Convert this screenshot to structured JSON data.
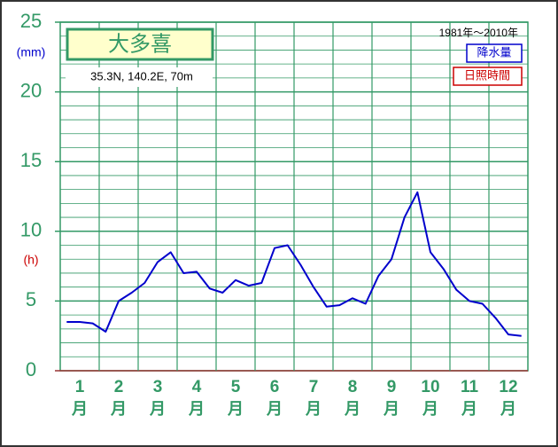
{
  "chart_data": {
    "type": "line",
    "title": "大多喜",
    "subtitle": "35.3N,  140.2E,  70m",
    "period": "1981年～2010年",
    "y_unit_left": "(mm)",
    "y_unit_right": "(h)",
    "x_unit": "月",
    "categories": [
      null,
      "1",
      null,
      null,
      "2",
      null,
      null,
      "3",
      null,
      null,
      "4",
      null,
      null,
      "5",
      null,
      null,
      "6",
      null,
      null,
      "7",
      null,
      null,
      "8",
      null,
      null,
      "9",
      null,
      null,
      "10",
      null,
      null,
      "11",
      null,
      null,
      "12",
      null
    ],
    "series": [
      {
        "name": "降水量",
        "color": "#0000cc",
        "values": [
          3.5,
          3.5,
          3.4,
          2.8,
          5.0,
          5.6,
          6.3,
          7.8,
          8.5,
          7.0,
          7.1,
          5.9,
          5.6,
          6.5,
          6.1,
          6.3,
          8.8,
          9.0,
          7.6,
          6.0,
          4.6,
          4.7,
          5.2,
          4.8,
          6.8,
          8.0,
          11.0,
          12.8,
          8.5,
          7.3,
          5.8,
          5.0,
          4.8,
          3.8,
          2.6,
          2.5
        ]
      },
      {
        "name": "日照時間",
        "color": "#cc0000",
        "values": [
          null,
          null,
          null,
          null,
          null,
          null,
          null,
          null,
          null,
          null,
          null,
          null,
          null,
          null,
          null,
          null,
          null,
          null,
          null,
          null,
          null,
          null,
          null,
          null,
          null,
          null,
          null,
          null,
          null,
          null,
          null,
          null,
          null,
          null,
          null,
          null
        ]
      }
    ],
    "ylim": [
      0,
      25
    ],
    "yticks": [
      0,
      5,
      10,
      15,
      20,
      25
    ],
    "yticks_minor": [
      1,
      2,
      3,
      4,
      6,
      7,
      8,
      9,
      11,
      12,
      13,
      14,
      16,
      17,
      18,
      19,
      21,
      22,
      23,
      24
    ],
    "grid": true
  }
}
